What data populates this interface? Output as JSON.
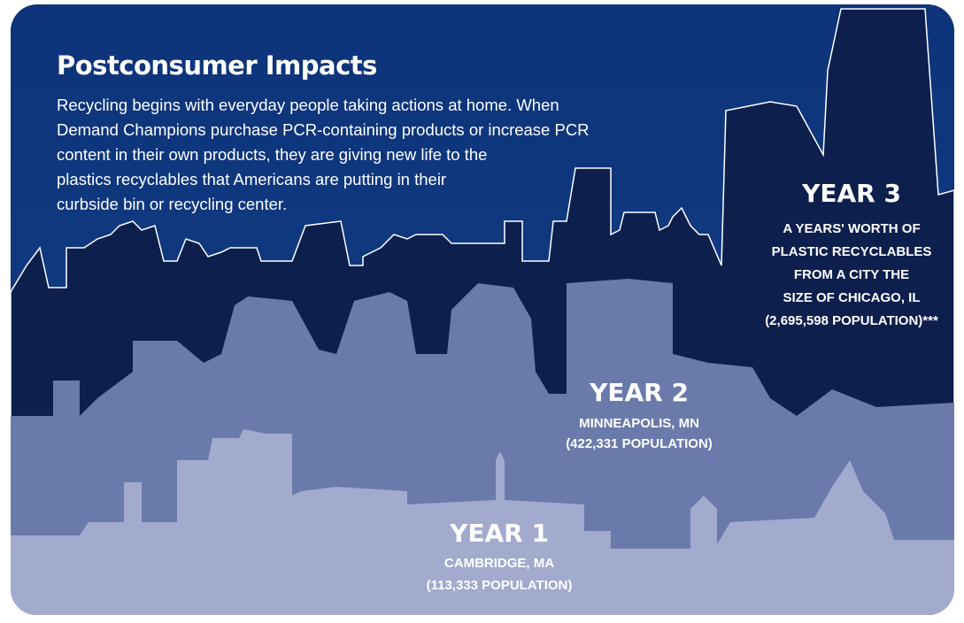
{
  "header": {
    "title": "Postconsumer Impacts",
    "intro": [
      "Recycling begins with everyday people taking actions at home. When",
      "Demand Champions purchase PCR-containing products or increase PCR",
      "content in their own products, they are giving new life to the",
      "plastics recyclables that Americans are putting in their",
      "curbside bin or recycling center."
    ]
  },
  "years": [
    {
      "heading": "YEAR 3",
      "lines": [
        "A YEARS' WORTH OF",
        "PLASTIC RECYCLABLES",
        "FROM A CITY THE",
        "SIZE OF CHICAGO, IL",
        "(2,695,598 POPULATION)***"
      ]
    },
    {
      "heading": "YEAR 2",
      "lines": [
        "MINNEAPOLIS, MN",
        "(422,331 POPULATION)"
      ]
    },
    {
      "heading": "YEAR 1",
      "lines": [
        "CAMBRIDGE, MA",
        "(113,333 POPULATION)"
      ]
    }
  ]
}
